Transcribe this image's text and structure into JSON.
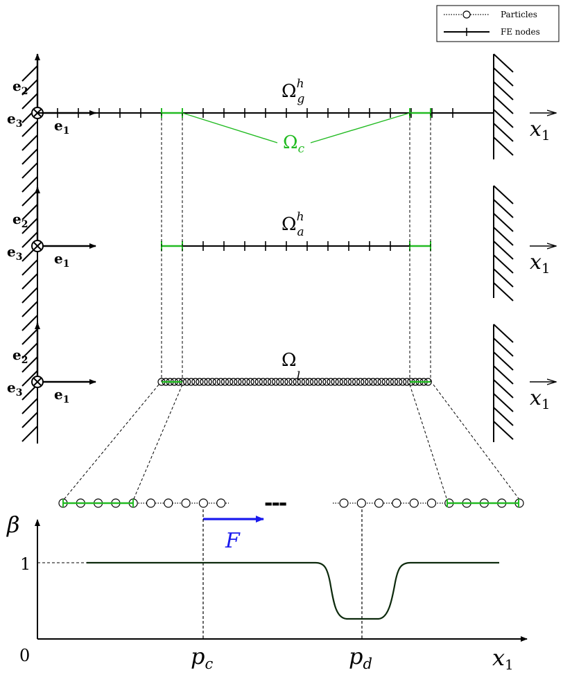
{
  "legend": {
    "particles_label": "Particles",
    "fe_nodes_label": "FE nodes"
  },
  "rows": [
    {
      "domain_symbol": "Ω",
      "domain_sup": "h",
      "domain_sub": "g"
    },
    {
      "domain_symbol": "Ω",
      "domain_sup": "h",
      "domain_sub": "a"
    },
    {
      "domain_symbol": "Ω",
      "domain_sup": "",
      "domain_sub": "l"
    }
  ],
  "coupling_label": {
    "symbol": "Ω",
    "sub": "c"
  },
  "basis": {
    "e1": "e",
    "e1_sub": "1",
    "e2": "e",
    "e2_sub": "2",
    "e3": "e",
    "e3_sub": "3"
  },
  "axis_right": {
    "label": "x",
    "sub": "1"
  },
  "gap_marker": "---",
  "force_label": "F",
  "plot": {
    "y_label": "β",
    "y_tick": "1",
    "origin": "0",
    "x_label": "x",
    "x_sub": "1",
    "pc_label": "p",
    "pc_sub": "c",
    "pd_label": "p",
    "pd_sub": "d"
  },
  "colors": {
    "coupling": "#22bb22",
    "force": "#1a1aee",
    "line": "#000000",
    "curve": "#0d2a0d"
  }
}
